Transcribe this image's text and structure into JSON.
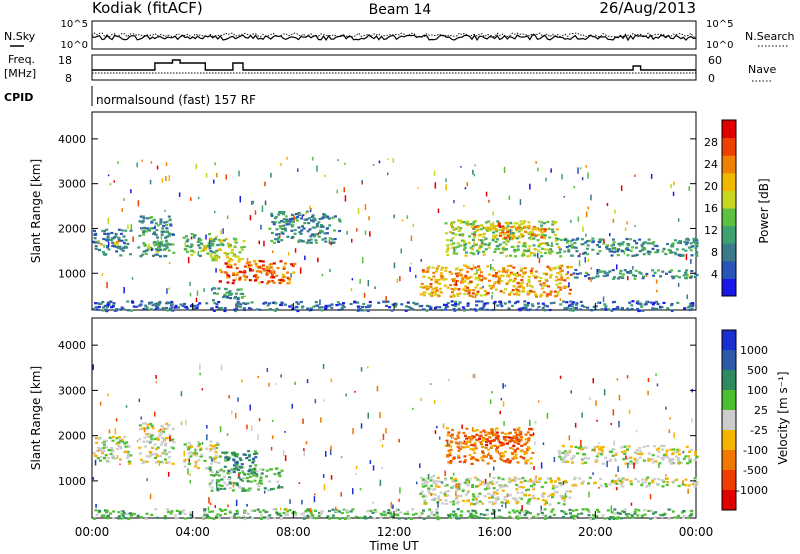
{
  "header": {
    "radar": "Kodiak (fitACF)",
    "beam": "Beam 14",
    "date": "26/Aug/2013"
  },
  "params": {
    "nsky_label": "N.Sky",
    "nsearch_label": "N.Search",
    "freq_label_1": "Freq.",
    "freq_label_2": "[MHz]",
    "nave_label": "Nave",
    "cpid_label": "CPID",
    "cpid_text": "normalsound (fast) 157 RF",
    "noise_left_ticks": [
      "10^5",
      "10^0"
    ],
    "noise_right_ticks": [
      "10^5",
      "10^0"
    ],
    "freq_ticks": [
      "18",
      "8"
    ],
    "nave_ticks": [
      "60",
      "0"
    ]
  },
  "chart_data": [
    {
      "type": "heatmap",
      "title": "",
      "panel": "power",
      "ylabel": "Slant Range [km]",
      "y_ticks": [
        1000,
        2000,
        3000,
        4000
      ],
      "ylim": [
        180,
        4600
      ],
      "colorbar_label": "Power [dB]",
      "colorbar_ticks": [
        4,
        8,
        12,
        16,
        20,
        24,
        28
      ],
      "colorbar_range": [
        0,
        32
      ],
      "colors": [
        "#1818e8",
        "#2a55b8",
        "#3a7a8a",
        "#3fa070",
        "#5cc040",
        "#c8d820",
        "#f0b800",
        "#f08000",
        "#ee4000",
        "#e00000"
      ],
      "regions": [
        {
          "t": [
            0.0,
            1.5
          ],
          "r": [
            1400,
            2000
          ],
          "v": 8
        },
        {
          "t": [
            0.2,
            1.0
          ],
          "r": [
            1650,
            1750
          ],
          "v": 18
        },
        {
          "t": [
            1.8,
            3.2
          ],
          "r": [
            1400,
            2300
          ],
          "v": 10
        },
        {
          "t": [
            2.2,
            3.0
          ],
          "r": [
            1500,
            1700
          ],
          "v": 14
        },
        {
          "t": [
            3.6,
            5.0
          ],
          "r": [
            1400,
            1900
          ],
          "v": 12
        },
        {
          "t": [
            4.4,
            6.0
          ],
          "r": [
            1300,
            1800
          ],
          "v": 16
        },
        {
          "t": [
            5.0,
            8.0
          ],
          "r": [
            800,
            1300
          ],
          "v": 26
        },
        {
          "t": [
            4.6,
            6.0
          ],
          "r": [
            400,
            700
          ],
          "v": 10
        },
        {
          "t": [
            7.0,
            9.8
          ],
          "r": [
            1700,
            2400
          ],
          "v": 9
        },
        {
          "t": [
            13.0,
            19.0
          ],
          "r": [
            500,
            1200
          ],
          "v": 22
        },
        {
          "t": [
            14.0,
            18.5
          ],
          "r": [
            1400,
            2200
          ],
          "v": 16
        },
        {
          "t": [
            15.0,
            18.0
          ],
          "r": [
            1800,
            2100
          ],
          "v": 22
        },
        {
          "t": [
            18.5,
            24.0
          ],
          "r": [
            1400,
            1800
          ],
          "v": 10
        },
        {
          "t": [
            19.0,
            24.0
          ],
          "r": [
            900,
            1100
          ],
          "v": 9
        },
        {
          "t": [
            0.0,
            24.0
          ],
          "r": [
            180,
            400
          ],
          "v": 6
        }
      ]
    },
    {
      "type": "heatmap",
      "title": "",
      "panel": "velocity",
      "ylabel": "Slant Range [km]",
      "xlabel": "Time UT",
      "x_ticks": [
        "00:00",
        "04:00",
        "08:00",
        "12:00",
        "16:00",
        "20:00",
        "00:00"
      ],
      "x_range_hours": [
        0,
        24
      ],
      "y_ticks": [
        1000,
        2000,
        3000,
        4000
      ],
      "ylim": [
        180,
        4600
      ],
      "colorbar_label": "Velocity [m s⁻¹]",
      "colorbar_ticks": [
        "1000",
        "500",
        "100",
        "25",
        "-25",
        "-100",
        "-500",
        "-1000"
      ],
      "colors": [
        "#1a2fd0",
        "#2a5aa8",
        "#2f8a60",
        "#4cbf30",
        "#cccccc",
        "#f4b400",
        "#f07800",
        "#f03c00",
        "#e00000"
      ],
      "regions": [
        {
          "t": [
            0.0,
            1.5
          ],
          "r": [
            1400,
            2000
          ],
          "v": 4
        },
        {
          "t": [
            1.8,
            3.2
          ],
          "r": [
            1400,
            2300
          ],
          "v": 4
        },
        {
          "t": [
            3.6,
            5.0
          ],
          "r": [
            1300,
            1900
          ],
          "v": 4
        },
        {
          "t": [
            4.6,
            7.5
          ],
          "r": [
            800,
            1300
          ],
          "v": 3
        },
        {
          "t": [
            5.0,
            6.5
          ],
          "r": [
            1200,
            1700
          ],
          "v": 2
        },
        {
          "t": [
            13.0,
            19.0
          ],
          "r": [
            500,
            1100
          ],
          "v": 4
        },
        {
          "t": [
            14.0,
            17.5
          ],
          "r": [
            1400,
            2200
          ],
          "v": 6
        },
        {
          "t": [
            15.0,
            17.0
          ],
          "r": [
            1800,
            2100
          ],
          "v": 7
        },
        {
          "t": [
            18.5,
            24.0
          ],
          "r": [
            1400,
            1800
          ],
          "v": 4
        },
        {
          "t": [
            19.0,
            24.0
          ],
          "r": [
            900,
            1100
          ],
          "v": 4
        },
        {
          "t": [
            0.0,
            24.0
          ],
          "r": [
            180,
            400
          ],
          "v": 3
        }
      ]
    }
  ]
}
